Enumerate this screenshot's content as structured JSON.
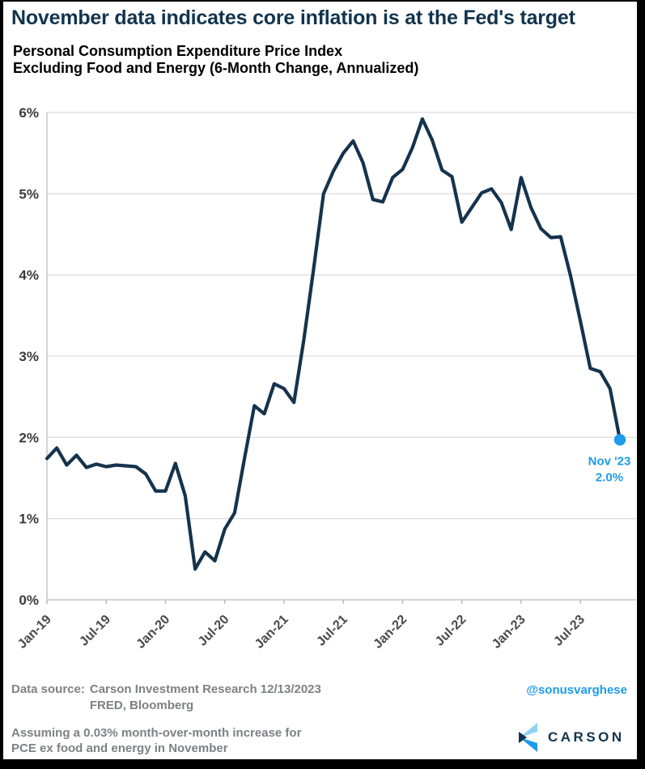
{
  "page": {
    "title": "November data indicates core inflation is at the Fed's target",
    "subtitle_line1": "Personal Consumption Expenditure Price Index",
    "subtitle_line2": "Excluding Food and Energy (6-Month Change, Annualized)"
  },
  "chart_data": {
    "type": "line",
    "title": "Personal Consumption Expenditure Price Index Excluding Food and Energy (6-Month Change, Annualized)",
    "x": [
      "Jan-19",
      "Feb-19",
      "Mar-19",
      "Apr-19",
      "May-19",
      "Jun-19",
      "Jul-19",
      "Aug-19",
      "Sep-19",
      "Oct-19",
      "Nov-19",
      "Dec-19",
      "Jan-20",
      "Feb-20",
      "Mar-20",
      "Apr-20",
      "May-20",
      "Jun-20",
      "Jul-20",
      "Aug-20",
      "Sep-20",
      "Oct-20",
      "Nov-20",
      "Dec-20",
      "Jan-21",
      "Feb-21",
      "Mar-21",
      "Apr-21",
      "May-21",
      "Jun-21",
      "Jul-21",
      "Aug-21",
      "Sep-21",
      "Oct-21",
      "Nov-21",
      "Dec-21",
      "Jan-22",
      "Feb-22",
      "Mar-22",
      "Apr-22",
      "May-22",
      "Jun-22",
      "Jul-22",
      "Aug-22",
      "Sep-22",
      "Oct-22",
      "Nov-22",
      "Dec-22",
      "Jan-23",
      "Feb-23",
      "Mar-23",
      "Apr-23",
      "May-23",
      "Jun-23",
      "Jul-23",
      "Aug-23",
      "Sep-23",
      "Oct-23",
      "Nov-23"
    ],
    "values": [
      1.74,
      1.87,
      1.66,
      1.78,
      1.63,
      1.67,
      1.64,
      1.66,
      1.65,
      1.64,
      1.55,
      1.34,
      1.34,
      1.68,
      1.28,
      0.38,
      0.59,
      0.48,
      0.87,
      1.07,
      1.74,
      2.39,
      2.29,
      2.66,
      2.6,
      2.43,
      3.2,
      4.08,
      5.0,
      5.28,
      5.5,
      5.65,
      5.38,
      4.93,
      4.9,
      5.2,
      5.3,
      5.57,
      5.92,
      5.66,
      5.29,
      5.21,
      4.65,
      4.83,
      5.01,
      5.06,
      4.89,
      4.56,
      5.2,
      4.83,
      4.57,
      4.46,
      4.47,
      3.99,
      3.43,
      2.85,
      2.81,
      2.6,
      1.97
    ],
    "ylim": [
      0,
      6
    ],
    "ytick_labels": [
      "0%",
      "1%",
      "2%",
      "3%",
      "4%",
      "5%",
      "6%"
    ],
    "xticks": [
      {
        "label": "Jan-19",
        "month_index": 0
      },
      {
        "label": "Jul-19",
        "month_index": 6
      },
      {
        "label": "Jan-20",
        "month_index": 12
      },
      {
        "label": "Jul-20",
        "month_index": 18
      },
      {
        "label": "Jan-21",
        "month_index": 24
      },
      {
        "label": "Jul-21",
        "month_index": 30
      },
      {
        "label": "Jan-22",
        "month_index": 36
      },
      {
        "label": "Jul-22",
        "month_index": 42
      },
      {
        "label": "Jan-23",
        "month_index": 48
      },
      {
        "label": "Jul-23",
        "month_index": 54
      }
    ],
    "grid": "horizontal",
    "legend": "none",
    "line_color": "#16334D",
    "annotation": {
      "line1": "Nov '23",
      "line2": "2.0%",
      "color": "#1E9BE9",
      "attached_to": "last-point"
    }
  },
  "footer": {
    "source_label": "Data source:",
    "source_line1": "Carson Investment Research  12/13/2023",
    "source_line2": "FRED, Bloomberg",
    "note_line1": "Assuming a 0.03% month-over-month increase for",
    "note_line2": "PCE ex food and energy in November",
    "handle": "@sonusvarghese",
    "logo_text": "CARSON"
  },
  "colors": {
    "title_navy": "#12344E",
    "line_navy": "#16334D",
    "accent_blue": "#1E9BE9",
    "logo_light_blue": "#8FD1F5",
    "footer_gray": "#7D8185",
    "gridline_gray": "#DDDDDD"
  }
}
